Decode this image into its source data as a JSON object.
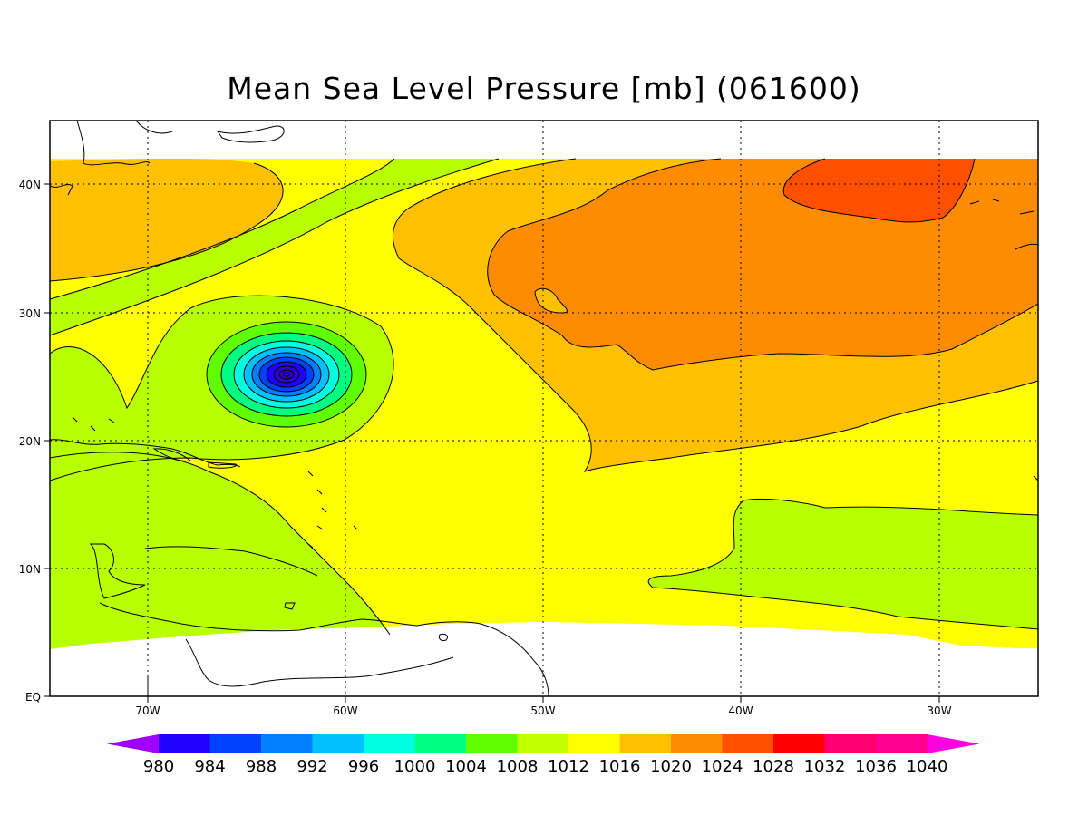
{
  "map": {
    "title": "Mean Sea Level Pressure [mb] (061600)",
    "lon_labels": [
      "70W",
      "60W",
      "50W",
      "40W",
      "30W"
    ],
    "lat_labels": [
      "40N",
      "30N",
      "20N",
      "10N",
      "EQ"
    ],
    "extent": {
      "lon_min": -75,
      "lon_max": -25,
      "lat_min": 0,
      "lat_max": 45
    },
    "grid": "dotted"
  },
  "legend": {
    "labels": [
      "980",
      "984",
      "988",
      "992",
      "996",
      "1000",
      "1004",
      "1008",
      "1012",
      "1016",
      "1020",
      "1024",
      "1028",
      "1032",
      "1036",
      "1040"
    ],
    "colors": [
      "#a000ff",
      "#2000ff",
      "#0040ff",
      "#0080ff",
      "#00c0ff",
      "#00ffe0",
      "#00ff80",
      "#60ff00",
      "#c0ff00",
      "#ffff00",
      "#ffc000",
      "#ff8c00",
      "#ff5000",
      "#ff0000",
      "#ff0070",
      "#ff0090",
      "#ff00e0"
    ]
  },
  "colors": {
    "c1008": "#b8ff00",
    "c1012": "#ffff00",
    "c1016": "#ffc000",
    "c1020": "#ff8c00",
    "c1024": "#ff5000",
    "storm": [
      "#60ff00",
      "#00ff80",
      "#00ffe0",
      "#00c0ff",
      "#0080ff",
      "#0040ff",
      "#2000ff",
      "#3000d0"
    ]
  }
}
